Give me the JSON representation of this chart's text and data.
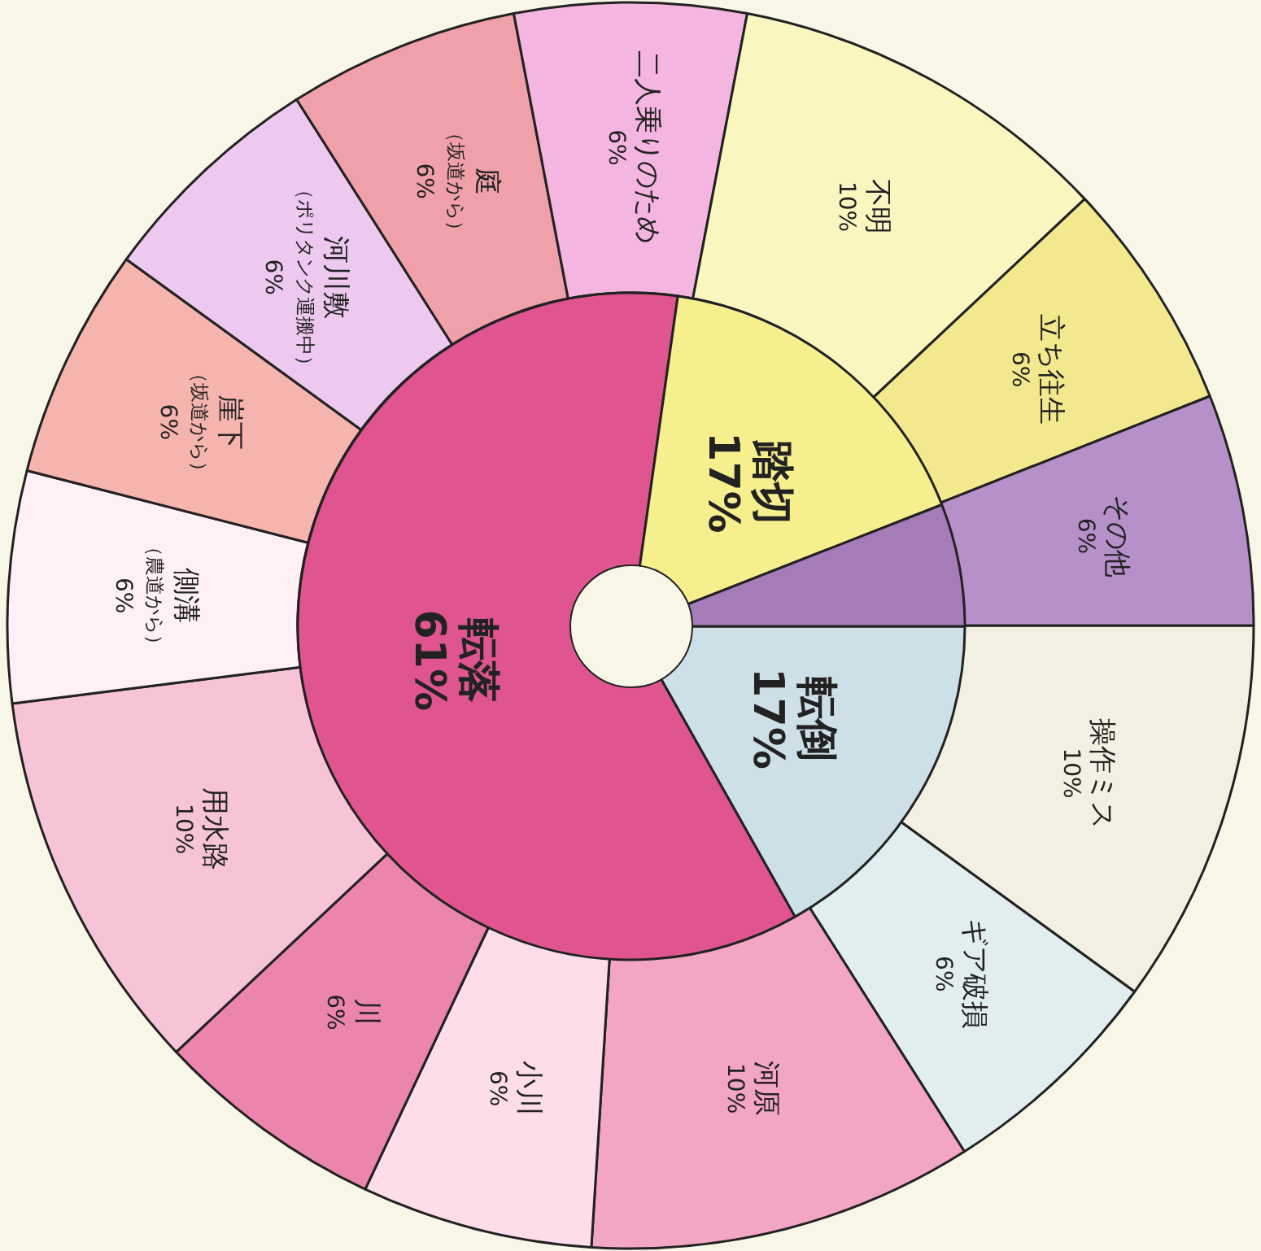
{
  "chart_data": [
    {
      "type": "pie",
      "categories": [
        "転倒",
        "転落",
        "踏切",
        null
      ],
      "values": [
        17,
        61,
        17,
        6
      ],
      "value_labels": [
        "17%",
        "61%",
        "17%",
        null
      ],
      "colors": [
        "#cddfe7",
        "#e05590",
        "#f6ef8e",
        "#a57bb8"
      ]
    },
    {
      "type": "donut",
      "categories": [
        "操作ミス",
        "ギア破損",
        "河原",
        "小川",
        "川",
        "用水路",
        "側溝（農道から）",
        "崖下（坂道から）",
        "河川敷（ポリタンク運搬中）",
        "庭（坂道から）",
        "二人乗りのため",
        "不明",
        "立ち往生",
        "その他"
      ],
      "values": [
        10,
        6,
        10,
        6,
        6,
        10,
        6,
        6,
        6,
        6,
        6,
        10,
        6,
        6
      ],
      "value_labels": [
        "10%",
        "6%",
        "10%",
        "6%",
        "6%",
        "10%",
        "6%",
        "6%",
        "6%",
        "6%",
        "6%",
        "10%",
        "6%",
        "6%"
      ],
      "colors": [
        "#f1f0e2",
        "#e2edf0",
        "#f3a6c3",
        "#fcdde9",
        "#eb85ad",
        "#f7c4d7",
        "#fff0f5",
        "#f5b4ae",
        "#edc9f0",
        "#f0a0a8",
        "#f4b6e0",
        "#faf6c0",
        "#f2e88e",
        "#b690c8"
      ]
    }
  ]
}
